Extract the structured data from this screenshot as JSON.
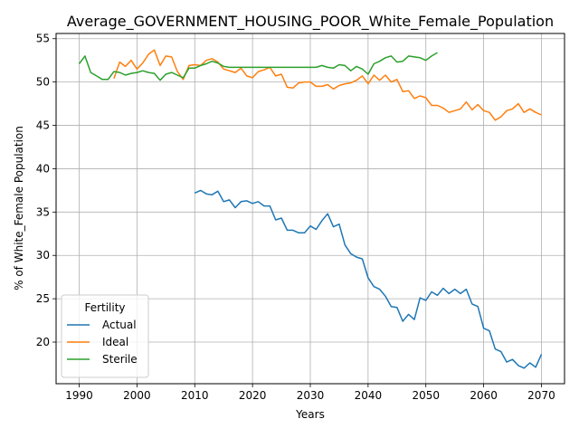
{
  "chart_data": {
    "type": "line",
    "title": "Average_GOVERNMENT_HOUSING_POOR_White_Female_Population",
    "xlabel": "Years",
    "ylabel": "% of White_Female Population",
    "xlim": [
      1986,
      2074
    ],
    "ylim": [
      15.2,
      55.6
    ],
    "x_ticks": [
      1990,
      2000,
      2010,
      2020,
      2030,
      2040,
      2050,
      2060,
      2070
    ],
    "y_ticks": [
      20,
      25,
      30,
      35,
      40,
      45,
      50,
      55
    ],
    "grid": true,
    "legend": {
      "title": "Fertility",
      "position": "lower-left"
    },
    "series": [
      {
        "name": "Actual",
        "color": "#1f77b4",
        "x": [
          2010,
          2011,
          2012,
          2013,
          2014,
          2015,
          2016,
          2017,
          2018,
          2019,
          2020,
          2021,
          2022,
          2023,
          2024,
          2025,
          2026,
          2027,
          2028,
          2029,
          2030,
          2031,
          2032,
          2033,
          2034,
          2035,
          2036,
          2037,
          2038,
          2039,
          2040,
          2041,
          2042,
          2043,
          2044,
          2045,
          2046,
          2047,
          2048,
          2049,
          2050,
          2051,
          2052,
          2053,
          2054,
          2055,
          2056,
          2057,
          2058,
          2059,
          2060,
          2061,
          2062,
          2063,
          2064,
          2065,
          2066,
          2067,
          2068,
          2069,
          2070
        ],
        "values": [
          37.2,
          37.5,
          37.1,
          37.0,
          37.4,
          36.2,
          36.4,
          35.5,
          36.2,
          36.3,
          36.0,
          36.2,
          35.7,
          35.7,
          34.1,
          34.3,
          32.9,
          32.9,
          32.6,
          32.6,
          33.4,
          33.0,
          34.0,
          34.8,
          33.3,
          33.6,
          31.2,
          30.2,
          29.8,
          29.6,
          27.4,
          26.4,
          26.1,
          25.3,
          24.1,
          24.0,
          22.4,
          23.2,
          22.6,
          25.1,
          24.8,
          25.8,
          25.4,
          26.2,
          25.6,
          26.1,
          25.6,
          26.1,
          24.4,
          24.1,
          21.6,
          21.3,
          19.2,
          18.9,
          17.7,
          18.0,
          17.3,
          17.0,
          17.6,
          17.1,
          18.6
        ]
      },
      {
        "name": "Ideal",
        "color": "#ff7f0e",
        "x": [
          1996,
          1997,
          1998,
          1999,
          2000,
          2001,
          2002,
          2003,
          2004,
          2005,
          2006,
          2007,
          2008,
          2009,
          2010,
          2011,
          2012,
          2013,
          2014,
          2015,
          2016,
          2017,
          2018,
          2019,
          2020,
          2021,
          2022,
          2023,
          2024,
          2025,
          2026,
          2027,
          2028,
          2029,
          2030,
          2031,
          2032,
          2033,
          2034,
          2035,
          2036,
          2037,
          2038,
          2039,
          2040,
          2041,
          2042,
          2043,
          2044,
          2045,
          2046,
          2047,
          2048,
          2049,
          2050,
          2051,
          2052,
          2053,
          2054,
          2055,
          2056,
          2057,
          2058,
          2059,
          2060,
          2061,
          2062,
          2063,
          2064,
          2065,
          2066,
          2067,
          2068,
          2069,
          2070
        ],
        "values": [
          50.4,
          52.3,
          51.8,
          52.5,
          51.5,
          52.2,
          53.2,
          53.7,
          51.9,
          53.0,
          52.9,
          51.2,
          50.3,
          51.9,
          52.0,
          51.9,
          52.5,
          52.7,
          52.3,
          51.5,
          51.3,
          51.1,
          51.6,
          50.7,
          50.5,
          51.2,
          51.4,
          51.7,
          50.7,
          50.9,
          49.4,
          49.3,
          49.9,
          50.0,
          50.0,
          49.5,
          49.5,
          49.7,
          49.2,
          49.6,
          49.8,
          49.9,
          50.2,
          50.7,
          49.8,
          50.8,
          50.2,
          50.8,
          50.0,
          50.3,
          48.9,
          49.0,
          48.1,
          48.4,
          48.2,
          47.3,
          47.3,
          47.0,
          46.5,
          46.7,
          46.9,
          47.7,
          46.8,
          47.4,
          46.7,
          46.5,
          45.6,
          46.0,
          46.7,
          46.9,
          47.5,
          46.5,
          46.9,
          46.5,
          46.2
        ]
      },
      {
        "name": "Sterile",
        "color": "#2ca02c",
        "x": [
          1990,
          1991,
          1992,
          1993,
          1994,
          1995,
          1996,
          1997,
          1998,
          1999,
          2000,
          2001,
          2002,
          2003,
          2004,
          2005,
          2006,
          2007,
          2008,
          2009,
          2010,
          2011,
          2012,
          2013,
          2014,
          2015,
          2016,
          2017,
          2018,
          2019,
          2020,
          2021,
          2022,
          2023,
          2024,
          2025,
          2026,
          2027,
          2028,
          2029,
          2030,
          2031,
          2032,
          2033,
          2034,
          2035,
          2036,
          2037,
          2038,
          2039,
          2040,
          2041,
          2042,
          2043,
          2044,
          2045,
          2046,
          2047,
          2048,
          2049,
          2050,
          2051,
          2052
        ],
        "values": [
          52.1,
          53.0,
          51.1,
          50.7,
          50.3,
          50.3,
          51.2,
          51.1,
          50.8,
          51.0,
          51.1,
          51.3,
          51.1,
          51.0,
          50.2,
          50.9,
          51.1,
          50.8,
          50.5,
          51.6,
          51.6,
          51.9,
          52.1,
          52.4,
          52.2,
          51.8,
          51.7,
          51.7,
          51.7,
          51.7,
          51.7,
          51.7,
          51.7,
          51.7,
          51.7,
          51.7,
          51.7,
          51.7,
          51.7,
          51.7,
          51.7,
          51.7,
          51.9,
          51.7,
          51.6,
          52.0,
          51.9,
          51.3,
          51.8,
          51.5,
          50.9,
          52.1,
          52.4,
          52.8,
          53.0,
          52.3,
          52.4,
          53.0,
          52.9,
          52.8,
          52.5,
          53.0,
          53.4
        ]
      }
    ]
  }
}
